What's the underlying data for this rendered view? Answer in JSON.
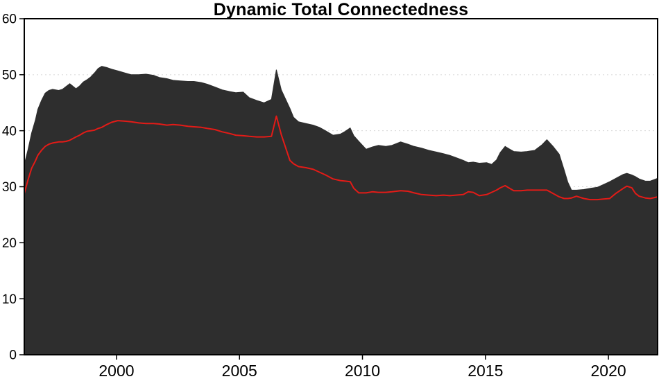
{
  "chart_data": {
    "type": "area",
    "title": "Dynamic Total Connectedness",
    "xlabel": "",
    "ylabel": "",
    "xlim": [
      1996.25,
      2022.0
    ],
    "ylim": [
      0,
      60
    ],
    "x_ticks": [
      2000,
      2005,
      2010,
      2015,
      2020
    ],
    "y_ticks": [
      0,
      10,
      20,
      30,
      40,
      50,
      60
    ],
    "gridlines_y": [
      10,
      20,
      30,
      40,
      50
    ],
    "grid_style": "dashed",
    "grid_color": "#d8d8d8",
    "axis_color": "#000000",
    "tick_label_color": "#000000",
    "background_color": "#ffffff",
    "legend_position": "none",
    "x": [
      1996.25,
      1996.4,
      1996.55,
      1996.7,
      1996.8,
      1996.95,
      1997.1,
      1997.25,
      1997.4,
      1997.65,
      1997.8,
      1997.95,
      1998.1,
      1998.35,
      1998.5,
      1998.65,
      1998.8,
      1998.95,
      1999.1,
      1999.25,
      1999.4,
      1999.6,
      1999.8,
      2000.05,
      2000.35,
      2000.6,
      2000.9,
      2001.2,
      2001.5,
      2001.75,
      2002.05,
      2002.3,
      2002.6,
      2002.9,
      2003.15,
      2003.45,
      2003.7,
      2004.0,
      2004.3,
      2004.6,
      2004.85,
      2005.15,
      2005.4,
      2005.7,
      2006.0,
      2006.3,
      2006.5,
      2006.7,
      2007.05,
      2007.2,
      2007.4,
      2007.7,
      2008.0,
      2008.25,
      2008.5,
      2008.8,
      2009.1,
      2009.3,
      2009.5,
      2009.65,
      2009.85,
      2010.15,
      2010.4,
      2010.65,
      2010.95,
      2011.2,
      2011.55,
      2011.85,
      2012.1,
      2012.4,
      2012.7,
      2013.0,
      2013.3,
      2013.55,
      2013.8,
      2014.1,
      2014.3,
      2014.5,
      2014.75,
      2015.05,
      2015.25,
      2015.45,
      2015.6,
      2015.8,
      2015.95,
      2016.15,
      2016.45,
      2016.7,
      2017.0,
      2017.3,
      2017.5,
      2017.75,
      2018.0,
      2018.2,
      2018.35,
      2018.5,
      2018.7,
      2019.0,
      2019.25,
      2019.55,
      2019.8,
      2020.05,
      2020.3,
      2020.6,
      2020.75,
      2020.95,
      2021.1,
      2021.25,
      2021.5,
      2021.7,
      2022.0
    ],
    "series": [
      {
        "name": "total-connectedness-area",
        "style": "filled-area",
        "color": "#2e2e2e",
        "values": [
          34.0,
          36.6,
          39.6,
          41.9,
          43.8,
          45.4,
          46.7,
          47.2,
          47.4,
          47.2,
          47.4,
          47.9,
          48.4,
          47.5,
          48.0,
          48.7,
          49.1,
          49.6,
          50.3,
          51.1,
          51.5,
          51.3,
          51.0,
          50.7,
          50.3,
          50.0,
          50.0,
          50.1,
          49.9,
          49.5,
          49.3,
          49.0,
          48.9,
          48.8,
          48.8,
          48.6,
          48.3,
          47.8,
          47.3,
          47.0,
          46.8,
          46.9,
          45.9,
          45.4,
          45.0,
          45.6,
          50.9,
          47.3,
          44.0,
          42.4,
          41.6,
          41.3,
          41.0,
          40.6,
          40.0,
          39.2,
          39.4,
          39.9,
          40.5,
          39.1,
          38.1,
          36.7,
          37.1,
          37.4,
          37.2,
          37.4,
          38.0,
          37.6,
          37.2,
          36.9,
          36.5,
          36.2,
          35.9,
          35.6,
          35.2,
          34.7,
          34.3,
          34.4,
          34.2,
          34.3,
          34.0,
          34.8,
          36.1,
          37.2,
          36.8,
          36.3,
          36.2,
          36.3,
          36.5,
          37.5,
          38.4,
          37.2,
          35.8,
          33.0,
          30.8,
          29.4,
          29.4,
          29.5,
          29.7,
          29.9,
          30.4,
          30.9,
          31.5,
          32.2,
          32.4,
          32.1,
          31.8,
          31.4,
          31.0,
          31.0,
          31.5
        ]
      },
      {
        "name": "red-line",
        "style": "line",
        "color": "#e41b17",
        "values": [
          28.8,
          31.2,
          33.3,
          34.6,
          35.6,
          36.5,
          37.2,
          37.6,
          37.8,
          38.0,
          38.0,
          38.1,
          38.3,
          38.9,
          39.2,
          39.6,
          39.9,
          40.0,
          40.1,
          40.4,
          40.6,
          41.1,
          41.5,
          41.8,
          41.7,
          41.6,
          41.4,
          41.3,
          41.3,
          41.2,
          41.0,
          41.1,
          41.0,
          40.8,
          40.7,
          40.6,
          40.4,
          40.2,
          39.8,
          39.5,
          39.2,
          39.1,
          39.0,
          38.9,
          38.9,
          39.0,
          42.6,
          39.3,
          34.7,
          34.1,
          33.6,
          33.4,
          33.1,
          32.6,
          32.1,
          31.4,
          31.1,
          31.0,
          30.9,
          29.7,
          28.9,
          28.9,
          29.1,
          29.0,
          29.0,
          29.1,
          29.3,
          29.2,
          28.9,
          28.6,
          28.5,
          28.4,
          28.5,
          28.4,
          28.5,
          28.6,
          29.1,
          29.0,
          28.4,
          28.6,
          29.0,
          29.4,
          29.8,
          30.2,
          29.8,
          29.3,
          29.3,
          29.4,
          29.4,
          29.4,
          29.4,
          28.8,
          28.2,
          27.9,
          27.9,
          28.0,
          28.3,
          27.9,
          27.7,
          27.7,
          27.8,
          27.9,
          28.8,
          29.7,
          30.1,
          29.8,
          28.8,
          28.3,
          28.0,
          27.9,
          28.2
        ]
      }
    ]
  }
}
